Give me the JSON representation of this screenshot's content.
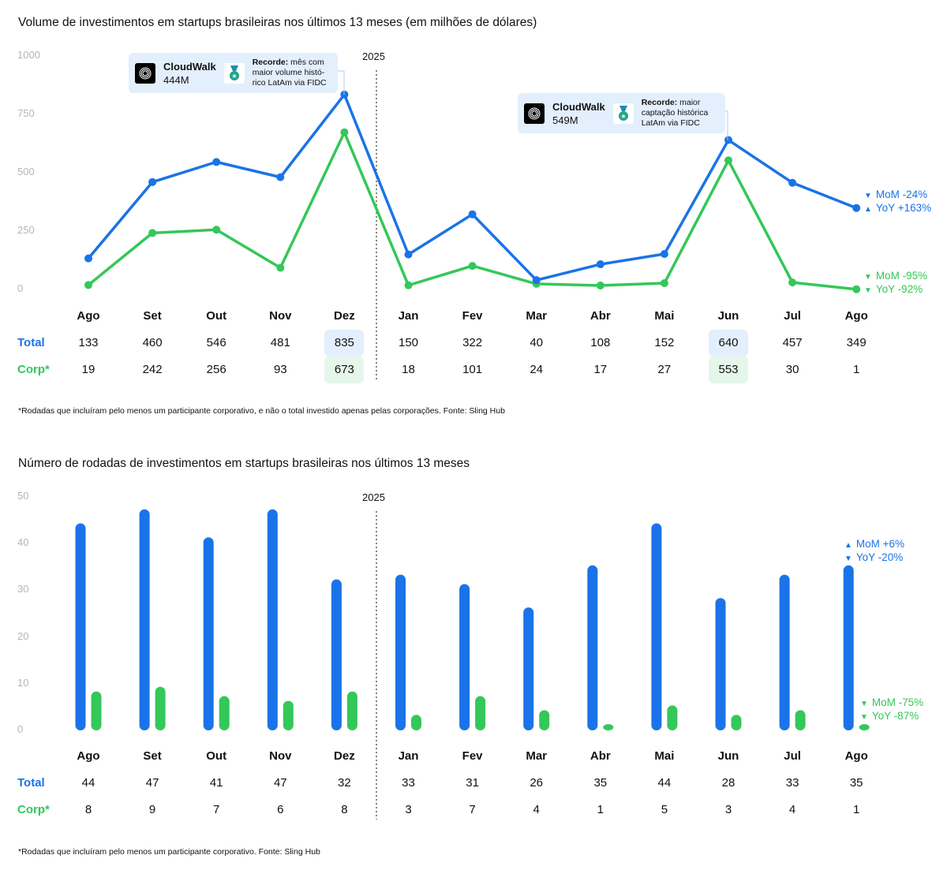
{
  "colors": {
    "total": "#1a73e8",
    "corp": "#34c759",
    "total_highlight": "#e3effc",
    "corp_highlight": "#e5f7ea",
    "axis": "#b5b5b5"
  },
  "chart_data": [
    {
      "type": "line",
      "title": "Volume de investimentos em startups brasileiras nos últimos 13 meses (em milhões de dólares)",
      "categories": [
        "Ago",
        "Set",
        "Out",
        "Nov",
        "Dez",
        "Jan",
        "Fev",
        "Mar",
        "Abr",
        "Mai",
        "Jun",
        "Jul",
        "Ago"
      ],
      "ylim": [
        0,
        1000
      ],
      "yticks": [
        "0",
        "250",
        "500",
        "750",
        "1000"
      ],
      "year_marker": "2025",
      "grid": false,
      "series": [
        {
          "name": "Total",
          "values": [
            133,
            460,
            546,
            481,
            835,
            150,
            322,
            40,
            108,
            152,
            640,
            457,
            349
          ],
          "highlight": [
            4,
            10
          ]
        },
        {
          "name": "Corp*",
          "values": [
            19,
            242,
            256,
            93,
            673,
            18,
            101,
            24,
            17,
            27,
            553,
            30,
            1
          ],
          "highlight": [
            4,
            10
          ]
        }
      ],
      "deltas": {
        "total": [
          {
            "arrow": "▼",
            "text": "MoM -24%"
          },
          {
            "arrow": "▲",
            "text": "YoY +163%"
          }
        ],
        "corp": [
          {
            "arrow": "▼",
            "text": "MoM -95%"
          },
          {
            "arrow": "▼",
            "text": "YoY -92%"
          }
        ]
      },
      "annotations": [
        {
          "company": "CloudWalk",
          "amount": "444M",
          "label_bold": "Recorde:",
          "label": " mês com maior volume histó-rico LatAm via FIDC",
          "icon": "medal-icon"
        },
        {
          "company": "CloudWalk",
          "amount": "549M",
          "label_bold": "Recorde:",
          "label": " maior captação histórica LatAm via FIDC",
          "icon": "medal-icon"
        }
      ],
      "footnote": "*Rodadas que incluíram pelo menos um participante corporativo, e não o total investido apenas pelas corporações. Fonte: Sling Hub"
    },
    {
      "type": "bar",
      "title": "Número de rodadas de investimentos em startups brasileiras nos últimos 13 meses",
      "categories": [
        "Ago",
        "Set",
        "Out",
        "Nov",
        "Dez",
        "Jan",
        "Fev",
        "Mar",
        "Abr",
        "Mai",
        "Jun",
        "Jul",
        "Ago"
      ],
      "ylim": [
        0,
        50
      ],
      "yticks": [
        "0",
        "10",
        "20",
        "30",
        "40",
        "50"
      ],
      "year_marker": "2025",
      "grid": false,
      "series": [
        {
          "name": "Total",
          "values": [
            44,
            47,
            41,
            47,
            32,
            33,
            31,
            26,
            35,
            44,
            28,
            33,
            35
          ]
        },
        {
          "name": "Corp*",
          "values": [
            8,
            9,
            7,
            6,
            8,
            3,
            7,
            4,
            1,
            5,
            3,
            4,
            1
          ]
        }
      ],
      "deltas": {
        "total": [
          {
            "arrow": "▲",
            "text": "MoM +6%"
          },
          {
            "arrow": "▼",
            "text": "YoY -20%"
          }
        ],
        "corp": [
          {
            "arrow": "▼",
            "text": "MoM -75%"
          },
          {
            "arrow": "▼",
            "text": "YoY -87%"
          }
        ]
      },
      "footnote": "*Rodadas que incluíram pelo menos um participante corporativo. Fonte: Sling Hub"
    }
  ]
}
